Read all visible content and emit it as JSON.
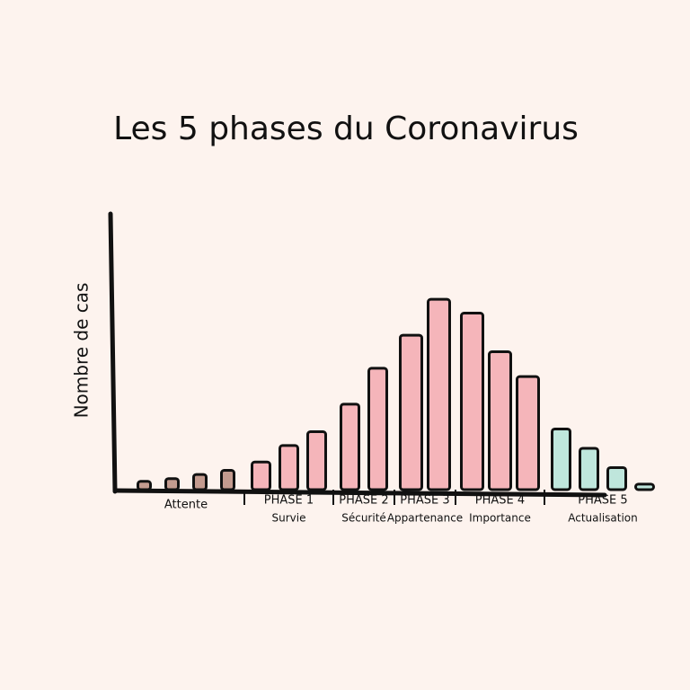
{
  "chart_data": {
    "type": "bar",
    "title": "Les 5 phases du Coronavirus",
    "ylabel": "Nombre de cas",
    "ylim": [
      0,
      100
    ],
    "series": [
      {
        "name": "Attente",
        "color": "#c39b8f",
        "values": [
          3,
          4,
          5.5,
          7
        ]
      },
      {
        "name": "PHASE 1",
        "label": "Survie",
        "color": "#f5b5ba",
        "values": [
          10,
          16,
          21
        ]
      },
      {
        "name": "PHASE 2",
        "label": "Sécurité",
        "color": "#f5b5ba",
        "values": [
          31,
          44
        ]
      },
      {
        "name": "PHASE 3",
        "label": "Appartenance",
        "color": "#f5b5ba",
        "values": [
          56,
          69
        ]
      },
      {
        "name": "PHASE 4",
        "label": "Importance",
        "color": "#f5b5ba",
        "values": [
          64,
          50,
          41
        ]
      },
      {
        "name": "PHASE 5",
        "label": "Actualisation",
        "color": "#bfe6dc",
        "values": [
          22,
          15,
          8,
          2
        ]
      }
    ]
  }
}
